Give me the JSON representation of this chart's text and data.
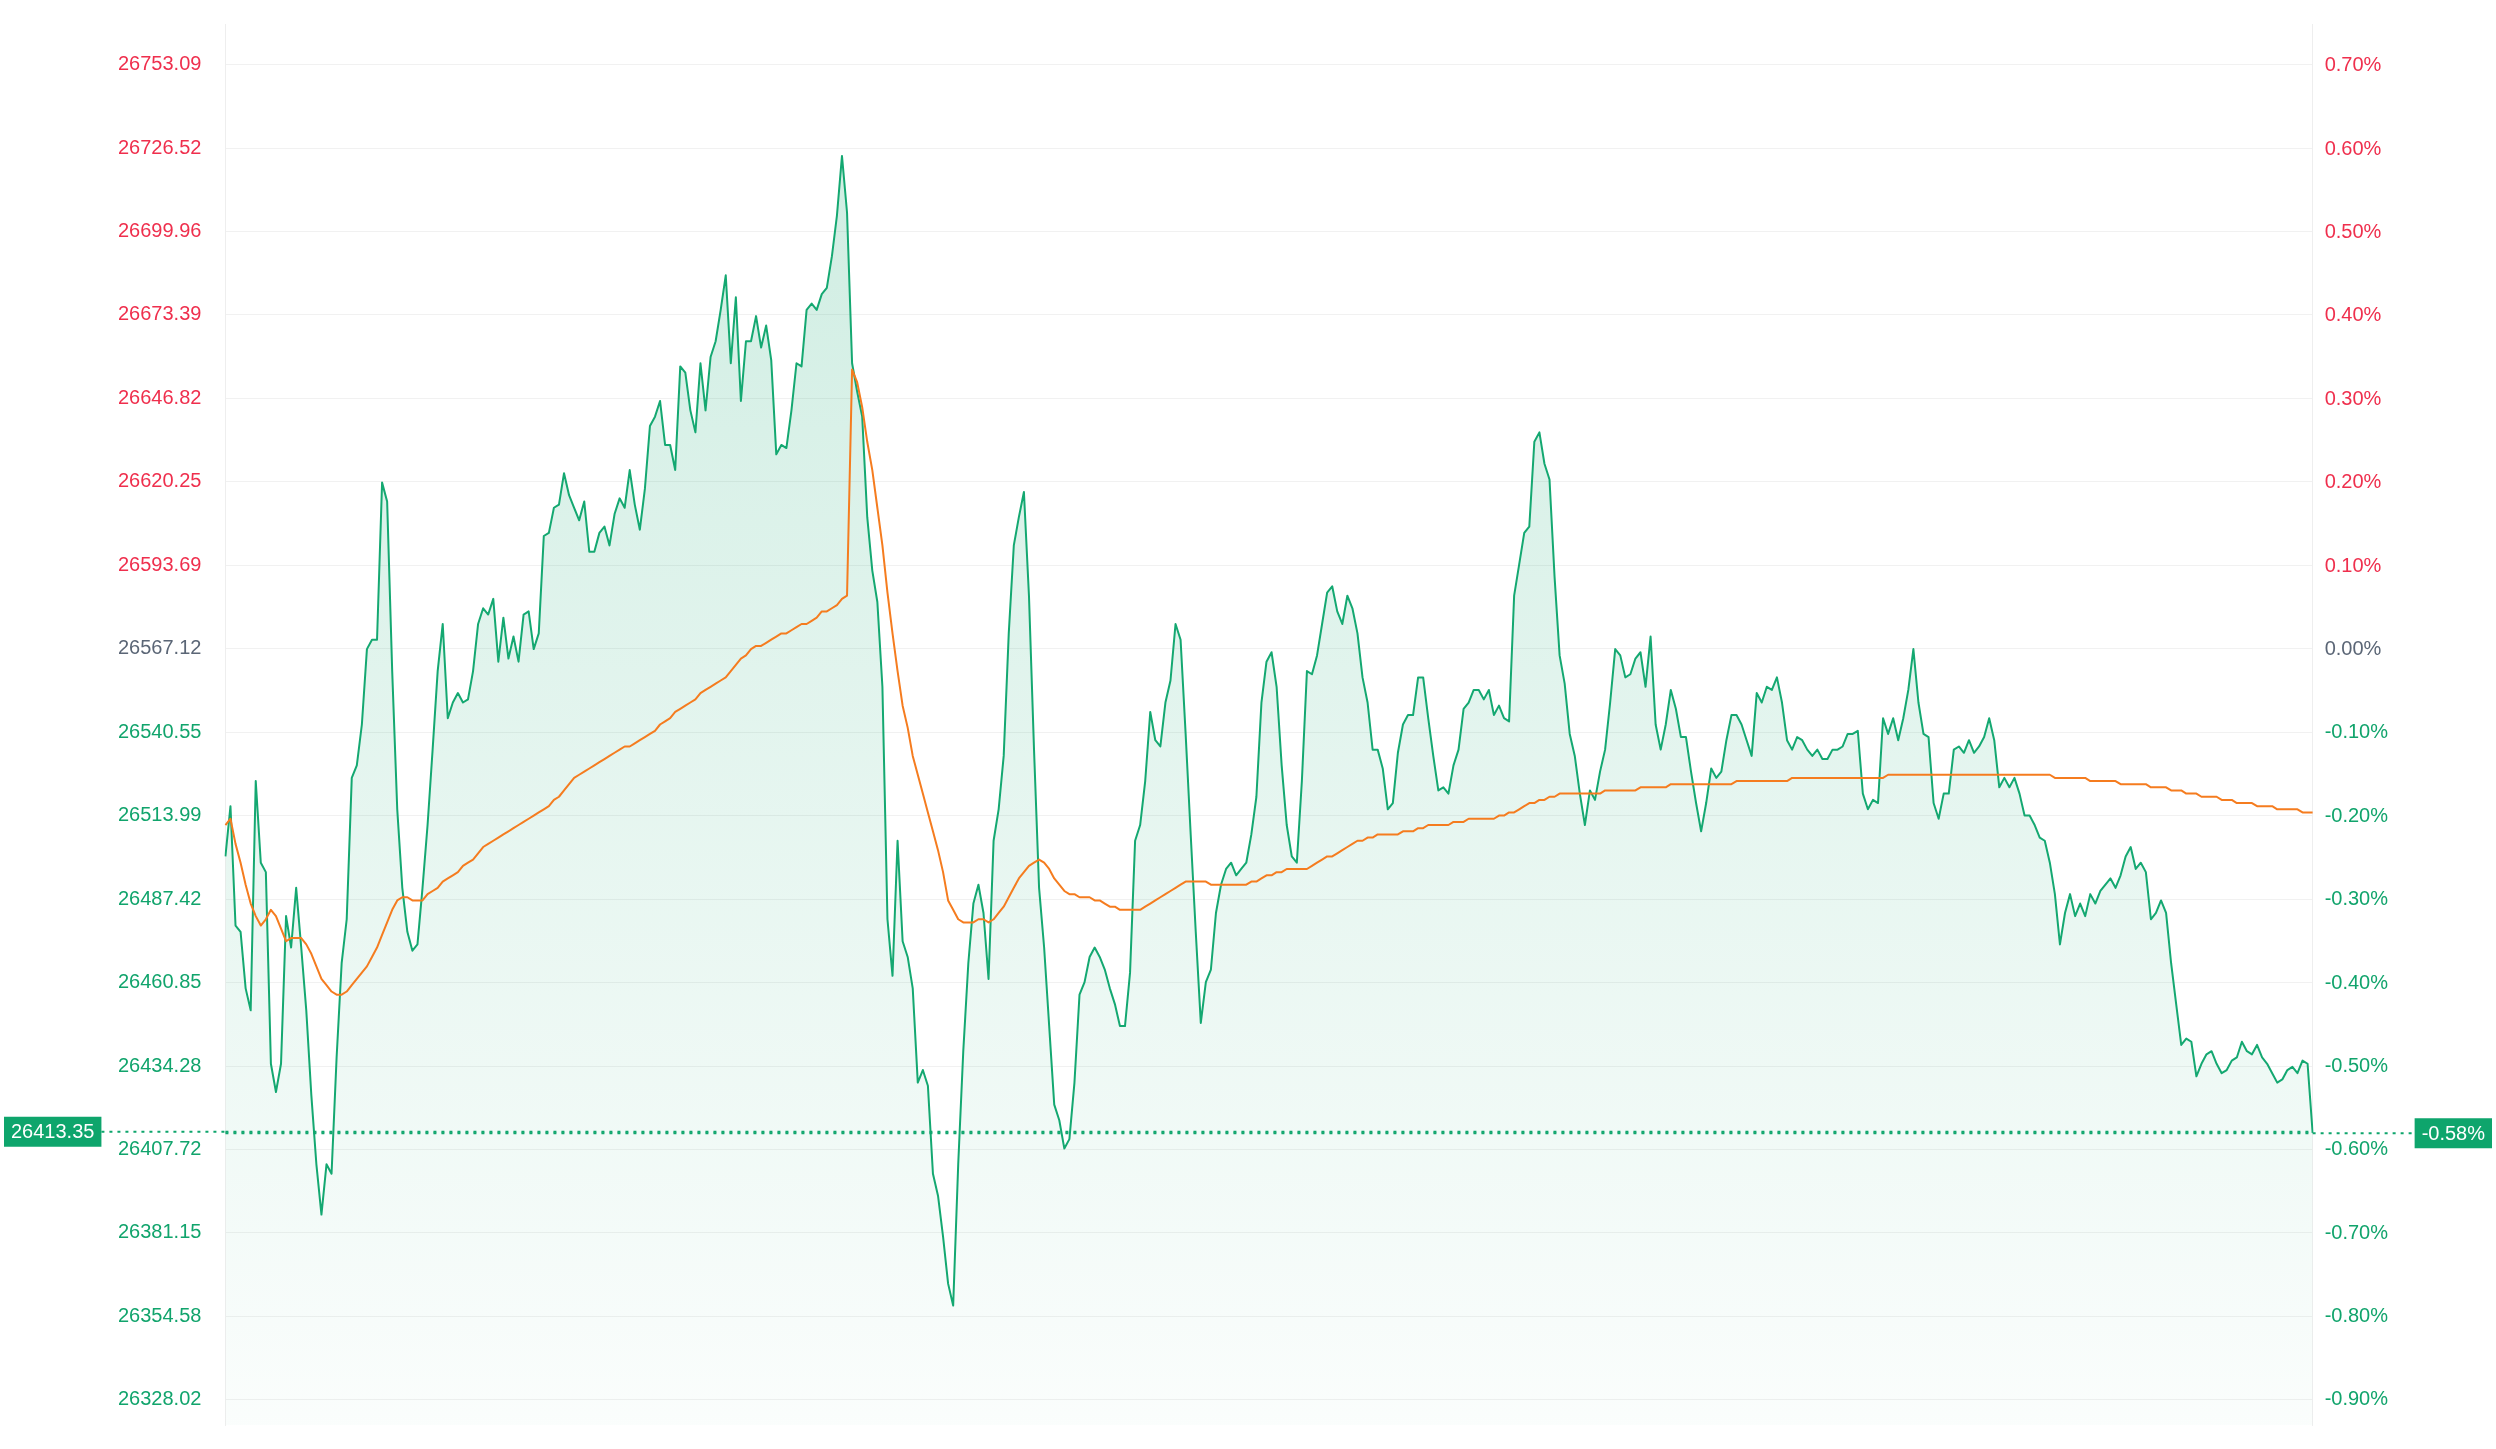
{
  "chart_data": {
    "type": "area",
    "categories": [
      null,
      null,
      null,
      null,
      null,
      null,
      null,
      null,
      null,
      null,
      null,
      null,
      null,
      null,
      null,
      null,
      null,
      null,
      null,
      null,
      null,
      null,
      null,
      null,
      null,
      null,
      null,
      null,
      null,
      null,
      null,
      null,
      null,
      null,
      null,
      null,
      null,
      null,
      null,
      null,
      null,
      null,
      null,
      null,
      null,
      null,
      null,
      null,
      null,
      null,
      null,
      null,
      null,
      null,
      null,
      null,
      null,
      null,
      null,
      null,
      null,
      null,
      null,
      null,
      null,
      null,
      null,
      null,
      null,
      null,
      null,
      null,
      null,
      null,
      null,
      null,
      null,
      null,
      null,
      null,
      null,
      null,
      null,
      null,
      null,
      null,
      null,
      null,
      null,
      null,
      null,
      null,
      null,
      null,
      null,
      null,
      null,
      null,
      null,
      null,
      null,
      null,
      null,
      null,
      null,
      null,
      null,
      null,
      null,
      null,
      null,
      null,
      null,
      null,
      null,
      null,
      null,
      null,
      null,
      null,
      null,
      null,
      null,
      null,
      null,
      null,
      null,
      null,
      null,
      null,
      null,
      null,
      null,
      null,
      null,
      null,
      null,
      null,
      null,
      null,
      null,
      null,
      null,
      null,
      null,
      null,
      null,
      null,
      null,
      null,
      null,
      null,
      null,
      null,
      null,
      null,
      null,
      null,
      null,
      null,
      null,
      null,
      null,
      null,
      null,
      null,
      null,
      null,
      null,
      null,
      null,
      null,
      null,
      null,
      null,
      null,
      null,
      null,
      null,
      null,
      null,
      null,
      null,
      null,
      null,
      null,
      null,
      null,
      null,
      null,
      null,
      null,
      null,
      null,
      null,
      null,
      null,
      null,
      null,
      null,
      null,
      null,
      null,
      null,
      null,
      null,
      null,
      null,
      null,
      null,
      null,
      null,
      null,
      null,
      null,
      null,
      null,
      null,
      null,
      null,
      null,
      null,
      null,
      null,
      null,
      null,
      null,
      null,
      null,
      null,
      null,
      null,
      null,
      null,
      null,
      null,
      null,
      null,
      null,
      null,
      null,
      null,
      null,
      null,
      null,
      null,
      null,
      null,
      null,
      null,
      null,
      null,
      null,
      null,
      null,
      null,
      null,
      null,
      null,
      null,
      null,
      null,
      null,
      null,
      null,
      null,
      null,
      null,
      null,
      null,
      null,
      null,
      null,
      null,
      null,
      null,
      null,
      null,
      null,
      null,
      null,
      null,
      null,
      null,
      null,
      null,
      null,
      null,
      null,
      null,
      null,
      null,
      null,
      null,
      null,
      null,
      null,
      null,
      null,
      null,
      null,
      null,
      null,
      null,
      null,
      null,
      null,
      null,
      null,
      null,
      null,
      null,
      null,
      null,
      null,
      null,
      null,
      null,
      null,
      null,
      null,
      null,
      null,
      null,
      null,
      null,
      null,
      null,
      null,
      null,
      null,
      null,
      null,
      null,
      null,
      null,
      null,
      null,
      null,
      null,
      null,
      null,
      null,
      null,
      null,
      null,
      null,
      null,
      null,
      null,
      null,
      null,
      null,
      null,
      null,
      null,
      null,
      null,
      null,
      null,
      null,
      null,
      null,
      null,
      null,
      null,
      null,
      null,
      null,
      null,
      null,
      null,
      null,
      null,
      null,
      null,
      null,
      null,
      null,
      null,
      null,
      null,
      null,
      null,
      null,
      null,
      null,
      null,
      null,
      null,
      null,
      null,
      null,
      null,
      null,
      null,
      null,
      null,
      null,
      null,
      null,
      null,
      null,
      null,
      null,
      null,
      null,
      null,
      null,
      null,
      null,
      null,
      null,
      null
    ],
    "series": [
      {
        "color": "#14a871",
        "values": [
          26501,
          26517,
          26479,
          26477,
          26459,
          26452,
          26525,
          26499,
          26496,
          26435,
          26426,
          26435,
          26482,
          26472,
          26491,
          26472,
          26452,
          26425,
          26403,
          26387,
          26403,
          26400,
          26437,
          26467,
          26481,
          26526,
          26530,
          26543,
          26567,
          26570,
          26570,
          26620,
          26614,
          26560,
          26516,
          26491,
          26477,
          26471,
          26473,
          26491,
          26511,
          26535,
          26560,
          26575,
          26545,
          26550,
          26553,
          26550,
          26551,
          26560,
          26575,
          26580,
          26578,
          26583,
          26563,
          26577,
          26564,
          26571,
          26563,
          26578,
          26579,
          26567,
          26572,
          26603,
          26604,
          26612,
          26613,
          26623,
          26616,
          26612,
          26608,
          26614,
          26598,
          26598,
          26604,
          26606,
          26600,
          26610,
          26615,
          26612,
          26624,
          26613,
          26605,
          26618,
          26638,
          26641,
          26646,
          26632,
          26632,
          26624,
          26657,
          26655,
          26643,
          26636,
          26658,
          26643,
          26660,
          26665,
          26675,
          26686,
          26658,
          26679,
          26646,
          26665,
          26665,
          26673,
          26663,
          26670,
          26659,
          26629,
          26632,
          26631,
          26643,
          26658,
          26657,
          26675,
          26677,
          26675,
          26680,
          26682,
          26692,
          26705,
          26724,
          26706,
          26658,
          26649,
          26641,
          26609,
          26592,
          26582,
          26555,
          26481,
          26463,
          26506,
          26474,
          26469,
          26459,
          26429,
          26433,
          26428,
          26400,
          26393,
          26380,
          26365,
          26358,
          26403,
          26439,
          26467,
          26486,
          26492,
          26483,
          26462,
          26506,
          26516,
          26533,
          26572,
          26600,
          26609,
          26617,
          26584,
          26535,
          26491,
          26472,
          26447,
          26422,
          26417,
          26408,
          26411,
          26429,
          26457,
          26461,
          26469,
          26472,
          26469,
          26465,
          26459,
          26454,
          26447,
          26447,
          26464,
          26506,
          26511,
          26525,
          26547,
          26538,
          26536,
          26550,
          26557,
          26575,
          26570,
          26540,
          26508,
          26477,
          26448,
          26461,
          26465,
          26483,
          26492,
          26497,
          26499,
          26495,
          26497,
          26499,
          26508,
          26520,
          26550,
          26563,
          26566,
          26555,
          26530,
          26511,
          26501,
          26499,
          26525,
          26560,
          26559,
          26565,
          26575,
          26585,
          26587,
          26579,
          26575,
          26584,
          26580,
          26572,
          26558,
          26550,
          26535,
          26535,
          26529,
          26516,
          26518,
          26534,
          26543,
          26546,
          26546,
          26558,
          26558,
          26545,
          26533,
          26522,
          26523,
          26521,
          26530,
          26535,
          26548,
          26550,
          26554,
          26554,
          26551,
          26554,
          26546,
          26549,
          26545,
          26544,
          26584,
          26594,
          26604,
          26606,
          26633,
          26636,
          26626,
          26621,
          26590,
          26565,
          26556,
          26540,
          26533,
          26521,
          26511,
          26522,
          26519,
          26528,
          26535,
          26550,
          26567,
          26565,
          26558,
          26559,
          26564,
          26566,
          26555,
          26571,
          26543,
          26535,
          26543,
          26554,
          26548,
          26539,
          26539,
          26528,
          26518,
          26509,
          26518,
          26529,
          26526,
          26528,
          26538,
          26546,
          26546,
          26543,
          26538,
          26533,
          26553,
          26550,
          26555,
          26554,
          26558,
          26550,
          26538,
          26535,
          26539,
          26538,
          26535,
          26533,
          26535,
          26532,
          26532,
          26535,
          26535,
          26536,
          26540,
          26540,
          26541,
          26521,
          26516,
          26519,
          26518,
          26545,
          26540,
          26545,
          26538,
          26545,
          26554,
          26567,
          26550,
          26540,
          26539,
          26518,
          26513,
          26521,
          26521,
          26535,
          26536,
          26534,
          26538,
          26534,
          26536,
          26539,
          26545,
          26538,
          26523,
          26526,
          26523,
          26526,
          26521,
          26514,
          26514,
          26511,
          26507,
          26506,
          26499,
          26489,
          26473,
          26483,
          26489,
          26482,
          26486,
          26482,
          26489,
          26486,
          26490,
          26492,
          26494,
          26491,
          26495,
          26501,
          26504,
          26497,
          26499,
          26496,
          26481,
          26483,
          26487,
          26483,
          26467,
          26454,
          26441,
          26443,
          26442,
          26431,
          26435,
          26438,
          26439,
          26435,
          26432,
          26433,
          26436,
          26437,
          26442,
          26439,
          26438,
          26441,
          26437,
          26435,
          26432,
          26429,
          26430,
          26433,
          26434,
          26432,
          26436,
          26435,
          26413
        ]
      },
      {
        "type": "line",
        "color": "#f57c1f",
        "values": [
          26511,
          26513,
          26505,
          26499,
          26492,
          26486,
          26482,
          26479,
          26481,
          26484,
          26482,
          26478,
          26474,
          26475,
          26475,
          26475,
          26473,
          26470,
          26466,
          26462,
          26460,
          26458,
          26457,
          26457,
          26458,
          26460,
          26462,
          26464,
          26466,
          26469,
          26472,
          26476,
          26480,
          26484,
          26487,
          26488,
          26488,
          26487,
          26487,
          26487,
          26489,
          26490,
          26491,
          26493,
          26494,
          26495,
          26496,
          26498,
          26499,
          26500,
          26502,
          26504,
          26505,
          26506,
          26507,
          26508,
          26509,
          26510,
          26511,
          26512,
          26513,
          26514,
          26515,
          26516,
          26517,
          26519,
          26520,
          26522,
          26524,
          26526,
          26527,
          26528,
          26529,
          26530,
          26531,
          26532,
          26533,
          26534,
          26535,
          26536,
          26536,
          26537,
          26538,
          26539,
          26540,
          26541,
          26543,
          26544,
          26545,
          26547,
          26548,
          26549,
          26550,
          26551,
          26553,
          26554,
          26555,
          26556,
          26557,
          26558,
          26560,
          26562,
          26564,
          26565,
          26567,
          26568,
          26568,
          26569,
          26570,
          26571,
          26572,
          26572,
          26573,
          26574,
          26575,
          26575,
          26576,
          26577,
          26579,
          26579,
          26580,
          26581,
          26583,
          26584,
          26656,
          26652,
          26644,
          26633,
          26624,
          26612,
          26600,
          26585,
          26572,
          26560,
          26549,
          26542,
          26533,
          26527,
          26521,
          26515,
          26509,
          26503,
          26496,
          26487,
          26484,
          26481,
          26480,
          26480,
          26480,
          26481,
          26481,
          26480,
          26481,
          26483,
          26485,
          26488,
          26491,
          26494,
          26496,
          26498,
          26499,
          26500,
          26499,
          26497,
          26494,
          26492,
          26490,
          26489,
          26489,
          26488,
          26488,
          26488,
          26487,
          26487,
          26486,
          26485,
          26485,
          26484,
          26484,
          26484,
          26484,
          26484,
          26485,
          26486,
          26487,
          26488,
          26489,
          26490,
          26491,
          26492,
          26493,
          26493,
          26493,
          26493,
          26493,
          26492,
          26492,
          26492,
          26492,
          26492,
          26492,
          26492,
          26492,
          26493,
          26493,
          26494,
          26495,
          26495,
          26496,
          26496,
          26497,
          26497,
          26497,
          26497,
          26497,
          26498,
          26499,
          26500,
          26501,
          26501,
          26502,
          26503,
          26504,
          26505,
          26506,
          26506,
          26507,
          26507,
          26508,
          26508,
          26508,
          26508,
          26508,
          26509,
          26509,
          26509,
          26510,
          26510,
          26511,
          26511,
          26511,
          26511,
          26511,
          26512,
          26512,
          26512,
          26513,
          26513,
          26513,
          26513,
          26513,
          26513,
          26514,
          26514,
          26515,
          26515,
          26516,
          26517,
          26518,
          26518,
          26519,
          26519,
          26520,
          26520,
          26521,
          26521,
          26521,
          26521,
          26521,
          26521,
          26521,
          26521,
          26521,
          26522,
          26522,
          26522,
          26522,
          26522,
          26522,
          26522,
          26523,
          26523,
          26523,
          26523,
          26523,
          26523,
          26524,
          26524,
          26524,
          26524,
          26524,
          26524,
          26524,
          26524,
          26524,
          26524,
          26524,
          26524,
          26524,
          26525,
          26525,
          26525,
          26525,
          26525,
          26525,
          26525,
          26525,
          26525,
          26525,
          26525,
          26526,
          26526,
          26526,
          26526,
          26526,
          26526,
          26526,
          26526,
          26526,
          26526,
          26526,
          26526,
          26526,
          26526,
          26526,
          26526,
          26526,
          26526,
          26526,
          26527,
          26527,
          26527,
          26527,
          26527,
          26527,
          26527,
          26527,
          26527,
          26527,
          26527,
          26527,
          26527,
          26527,
          26527,
          26527,
          26527,
          26527,
          26527,
          26527,
          26527,
          26527,
          26527,
          26527,
          26527,
          26527,
          26527,
          26527,
          26527,
          26527,
          26527,
          26527,
          26527,
          26526,
          26526,
          26526,
          26526,
          26526,
          26526,
          26526,
          26525,
          26525,
          26525,
          26525,
          26525,
          26525,
          26524,
          26524,
          26524,
          26524,
          26524,
          26524,
          26523,
          26523,
          26523,
          26523,
          26522,
          26522,
          26522,
          26521,
          26521,
          26521,
          26520,
          26520,
          26520,
          26520,
          26519,
          26519,
          26519,
          26518,
          26518,
          26518,
          26518,
          26517,
          26517,
          26517,
          26517,
          26516,
          26516,
          26516,
          26516,
          26516,
          26515,
          26515,
          26515
        ]
      }
    ],
    "ylim": [
      26320,
      26766
    ],
    "yticks": [
      26328.02,
      26354.58,
      26381.15,
      26407.72,
      26434.28,
      26460.85,
      26487.42,
      26513.99,
      26540.55,
      26567.12,
      26593.69,
      26620.25,
      26646.82,
      26673.39,
      26699.96,
      26726.52,
      26753.09
    ],
    "y2lim": [
      -0.93,
      0.75
    ],
    "y2ticks": [
      {
        "value": -0.9,
        "label": "-0.90%"
      },
      {
        "value": -0.8,
        "label": "-0.80%"
      },
      {
        "value": -0.7,
        "label": "-0.70%"
      },
      {
        "value": -0.6,
        "label": "-0.60%"
      },
      {
        "value": -0.5,
        "label": "-0.50%"
      },
      {
        "value": -0.4,
        "label": "-0.40%"
      },
      {
        "value": -0.3,
        "label": "-0.30%"
      },
      {
        "value": -0.2,
        "label": "-0.20%"
      },
      {
        "value": -0.1,
        "label": "-0.10%"
      },
      {
        "value": 0,
        "label": "0.00%"
      },
      {
        "value": 0.1,
        "label": "0.10%"
      },
      {
        "value": 0.2,
        "label": "0.20%"
      },
      {
        "value": 0.3,
        "label": "0.30%"
      },
      {
        "value": 0.4,
        "label": "0.40%"
      },
      {
        "value": 0.5,
        "label": "0.50%"
      },
      {
        "value": 0.6,
        "label": "0.60%"
      },
      {
        "value": 0.7,
        "label": "0.70%"
      }
    ],
    "ref_lines": [
      {
        "axis": "y",
        "value": 26413.35,
        "label": "26413.35",
        "color": "#0ea56c",
        "line_style": "dotted"
      },
      {
        "axis": "y2",
        "value": -0.58,
        "label": "-0.58%",
        "color": "#0ea56c",
        "line_style": "dotted"
      }
    ],
    "grid": "y",
    "legend": false,
    "marker": "none"
  }
}
